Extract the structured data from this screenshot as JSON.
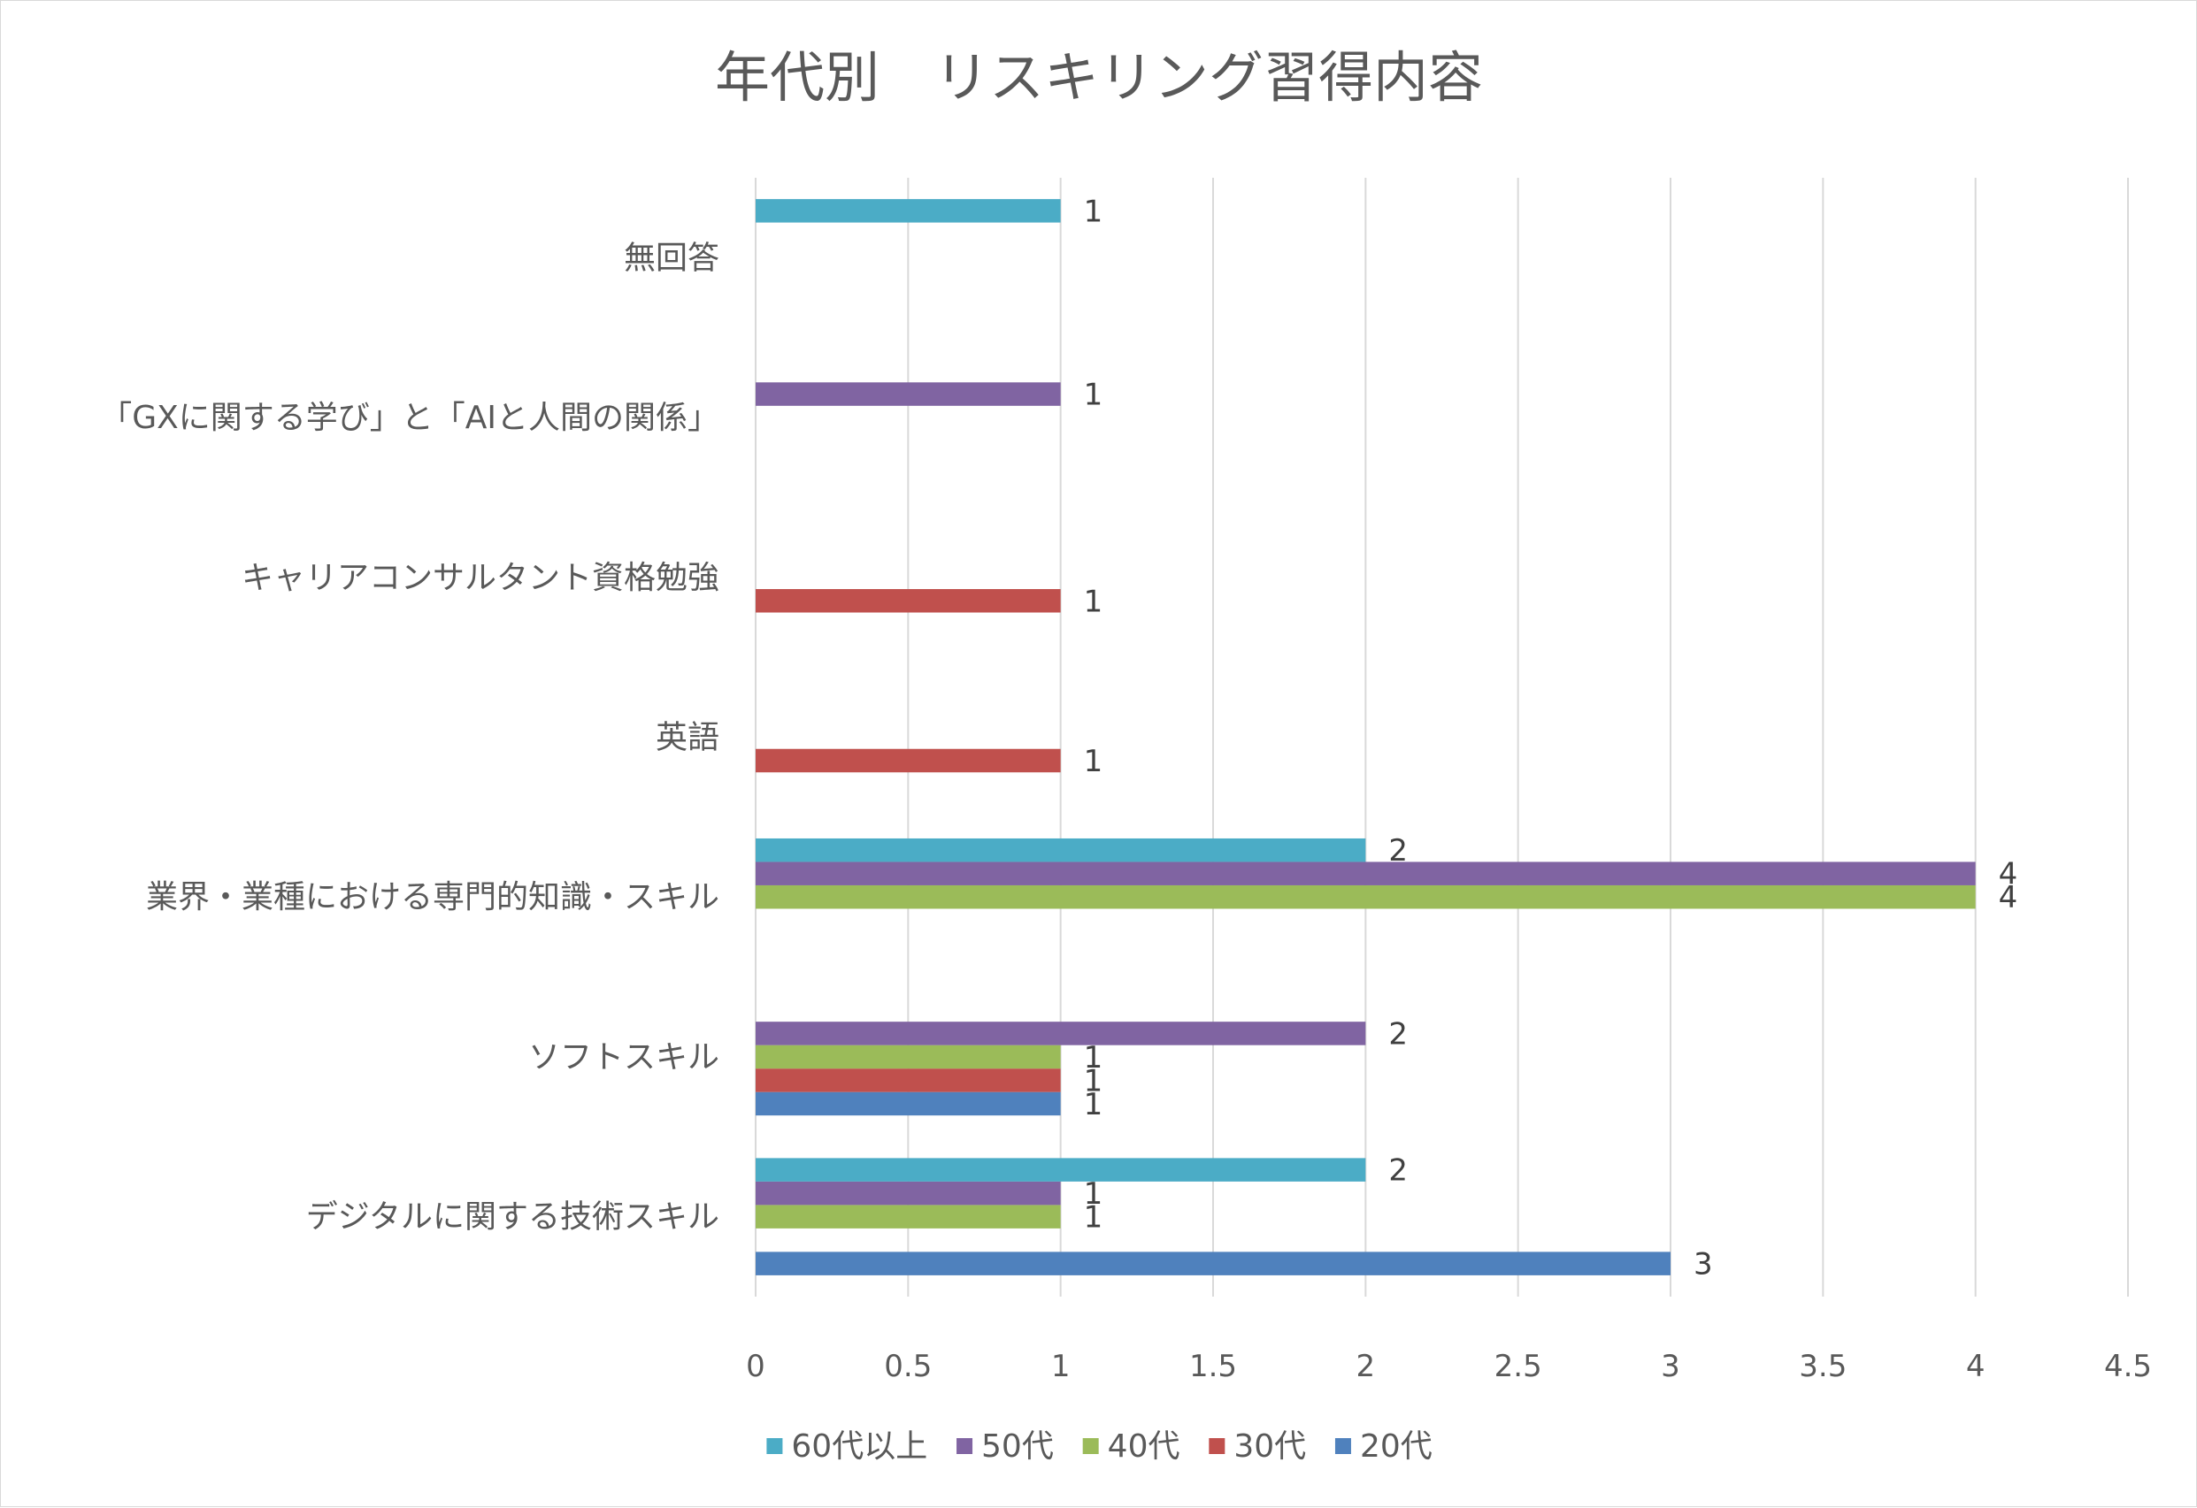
{
  "chart_data": {
    "type": "bar",
    "orientation": "horizontal",
    "title": "年代別　リスキリング習得内容",
    "xlabel": "",
    "ylabel": "",
    "xlim": [
      0,
      4.5
    ],
    "x_ticks": [
      "0",
      "0.5",
      "1",
      "1.5",
      "2",
      "2.5",
      "3",
      "3.5",
      "4",
      "4.5"
    ],
    "grid": true,
    "legend_position": "bottom",
    "categories": [
      "デジタルに関する技術スキル",
      "ソフトスキル",
      "業界・業種における専門的知識・スキル",
      "英語",
      "キャリアコンサルタント資格勉強",
      "「GXに関する学び」と「AIと人間の関係」",
      "無回答"
    ],
    "series": [
      {
        "name": "20代",
        "color": "#4f81bd",
        "values": [
          3,
          1,
          null,
          null,
          null,
          null,
          null
        ]
      },
      {
        "name": "30代",
        "color": "#c0504d",
        "values": [
          null,
          1,
          null,
          1,
          1,
          null,
          null
        ]
      },
      {
        "name": "40代",
        "color": "#9bbb59",
        "values": [
          1,
          1,
          4,
          null,
          null,
          null,
          null
        ]
      },
      {
        "name": "50代",
        "color": "#8064a2",
        "values": [
          1,
          2,
          4,
          null,
          null,
          1,
          null
        ]
      },
      {
        "name": "60代以上",
        "color": "#4bacc6",
        "values": [
          2,
          null,
          2,
          null,
          null,
          null,
          1
        ]
      }
    ],
    "legend_order": [
      "60代以上",
      "50代",
      "40代",
      "30代",
      "20代"
    ]
  }
}
